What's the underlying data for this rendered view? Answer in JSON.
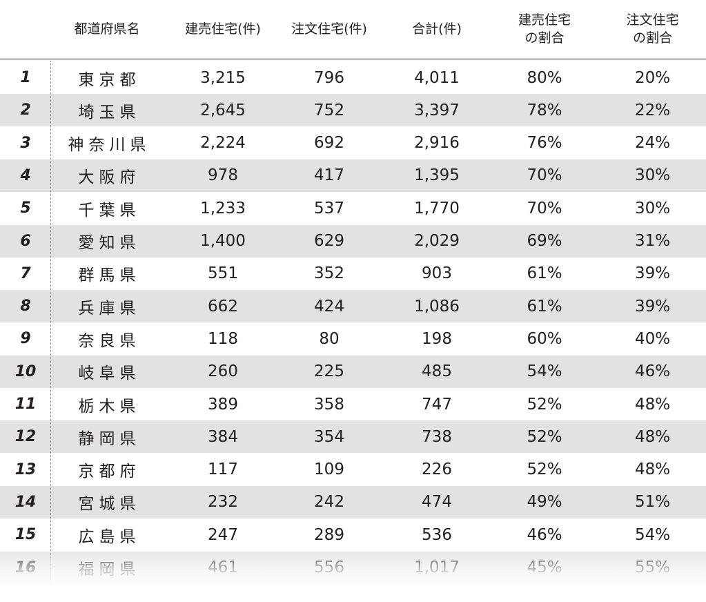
{
  "headers": {
    "prefecture": "都道府県名",
    "tateuri": "建売住宅(件)",
    "chumon": "注文住宅(件)",
    "total": "合計(件)",
    "tateuri_ratio": "建売住宅\nの割合",
    "chumon_ratio": "注文住宅\nの割合"
  },
  "rows": [
    {
      "rank": "1",
      "pref": "東京都",
      "tateuri": "3,215",
      "chumon": "796",
      "total": "4,011",
      "tateuri_ratio": "80%",
      "chumon_ratio": "20%"
    },
    {
      "rank": "2",
      "pref": "埼玉県",
      "tateuri": "2,645",
      "chumon": "752",
      "total": "3,397",
      "tateuri_ratio": "78%",
      "chumon_ratio": "22%"
    },
    {
      "rank": "3",
      "pref": "神奈川県",
      "tateuri": "2,224",
      "chumon": "692",
      "total": "2,916",
      "tateuri_ratio": "76%",
      "chumon_ratio": "24%"
    },
    {
      "rank": "4",
      "pref": "大阪府",
      "tateuri": "978",
      "chumon": "417",
      "total": "1,395",
      "tateuri_ratio": "70%",
      "chumon_ratio": "30%"
    },
    {
      "rank": "5",
      "pref": "千葉県",
      "tateuri": "1,233",
      "chumon": "537",
      "total": "1,770",
      "tateuri_ratio": "70%",
      "chumon_ratio": "30%"
    },
    {
      "rank": "6",
      "pref": "愛知県",
      "tateuri": "1,400",
      "chumon": "629",
      "total": "2,029",
      "tateuri_ratio": "69%",
      "chumon_ratio": "31%"
    },
    {
      "rank": "7",
      "pref": "群馬県",
      "tateuri": "551",
      "chumon": "352",
      "total": "903",
      "tateuri_ratio": "61%",
      "chumon_ratio": "39%"
    },
    {
      "rank": "8",
      "pref": "兵庫県",
      "tateuri": "662",
      "chumon": "424",
      "total": "1,086",
      "tateuri_ratio": "61%",
      "chumon_ratio": "39%"
    },
    {
      "rank": "9",
      "pref": "奈良県",
      "tateuri": "118",
      "chumon": "80",
      "total": "198",
      "tateuri_ratio": "60%",
      "chumon_ratio": "40%"
    },
    {
      "rank": "10",
      "pref": "岐阜県",
      "tateuri": "260",
      "chumon": "225",
      "total": "485",
      "tateuri_ratio": "54%",
      "chumon_ratio": "46%"
    },
    {
      "rank": "11",
      "pref": "栃木県",
      "tateuri": "389",
      "chumon": "358",
      "total": "747",
      "tateuri_ratio": "52%",
      "chumon_ratio": "48%"
    },
    {
      "rank": "12",
      "pref": "静岡県",
      "tateuri": "384",
      "chumon": "354",
      "total": "738",
      "tateuri_ratio": "52%",
      "chumon_ratio": "48%"
    },
    {
      "rank": "13",
      "pref": "京都府",
      "tateuri": "117",
      "chumon": "109",
      "total": "226",
      "tateuri_ratio": "52%",
      "chumon_ratio": "48%"
    },
    {
      "rank": "14",
      "pref": "宮城県",
      "tateuri": "232",
      "chumon": "242",
      "total": "474",
      "tateuri_ratio": "49%",
      "chumon_ratio": "51%"
    },
    {
      "rank": "15",
      "pref": "広島県",
      "tateuri": "247",
      "chumon": "289",
      "total": "536",
      "tateuri_ratio": "46%",
      "chumon_ratio": "54%"
    },
    {
      "rank": "16",
      "pref": "福岡県",
      "tateuri": "461",
      "chumon": "556",
      "total": "1,017",
      "tateuri_ratio": "45%",
      "chumon_ratio": "55%"
    }
  ]
}
